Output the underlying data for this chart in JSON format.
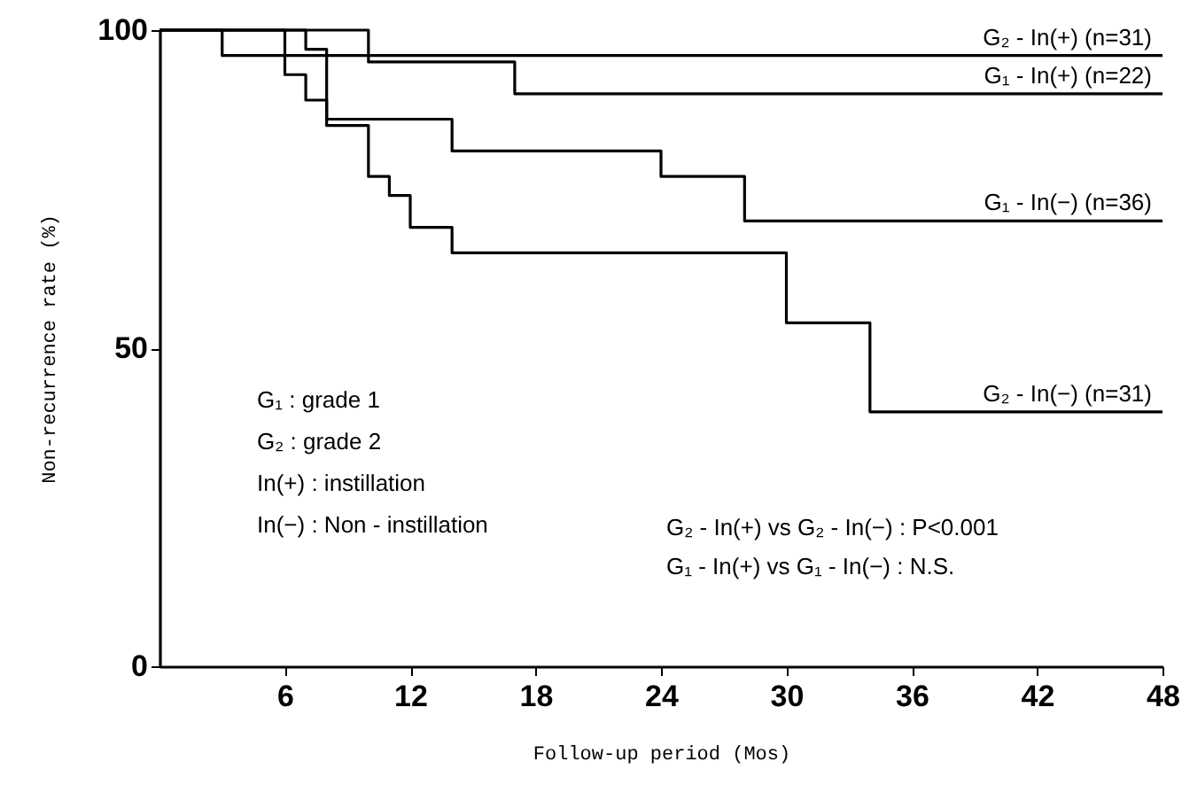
{
  "chart_data": {
    "type": "step",
    "xlabel": "Follow-up period (Mos)",
    "ylabel": "Non-recurrence rate (%)",
    "xlim": [
      0,
      48
    ],
    "ylim": [
      0,
      100
    ],
    "xticks": [
      6,
      12,
      18,
      24,
      30,
      36,
      42,
      48
    ],
    "yticks": [
      0,
      50,
      100
    ],
    "grid": false,
    "legend": false,
    "line_style": "solid",
    "marker": "none",
    "series": [
      {
        "name": "G₂ - In(+) (n=31)",
        "color": "#000000",
        "x": [
          0,
          3,
          48
        ],
        "values": [
          100,
          96,
          96
        ]
      },
      {
        "name": "G₁ - In(+) (n=22)",
        "color": "#000000",
        "x": [
          0,
          10,
          17,
          48
        ],
        "values": [
          100,
          95,
          90,
          90
        ]
      },
      {
        "name": "G₁ - In(−) (n=36)",
        "color": "#000000",
        "x": [
          0,
          7,
          8,
          14,
          24,
          28,
          48
        ],
        "values": [
          100,
          97,
          86,
          81,
          77,
          70,
          70
        ]
      },
      {
        "name": "G₂ - In(−) (n=31)",
        "color": "#000000",
        "x": [
          0,
          6,
          7,
          8,
          10,
          11,
          12,
          14,
          30,
          34,
          48
        ],
        "values": [
          100,
          93,
          89,
          85,
          77,
          74,
          69,
          65,
          54,
          40,
          40
        ]
      }
    ],
    "annotations": [
      "G₁    : grade 1",
      "G₂    : grade 2",
      "In(+) : instillation",
      "In(−) : Non - instillation",
      "G₂ - In(+) vs G₂ - In(−) : P<0.001",
      "G₁ - In(+) vs G₁ - In(−) : N.S."
    ]
  }
}
